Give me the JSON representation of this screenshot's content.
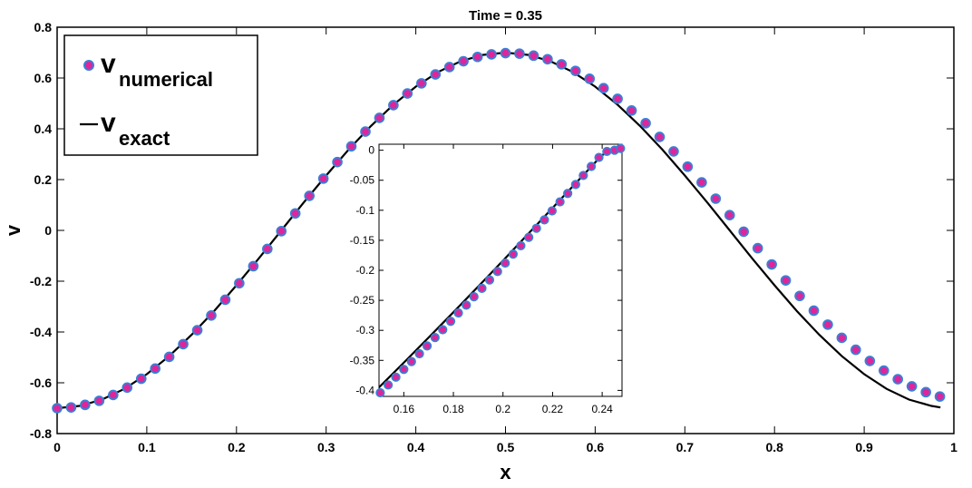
{
  "chart_data": [
    {
      "type": "line",
      "title": "Time = 0.35",
      "xlabel": "x",
      "ylabel": "v",
      "xlim": [
        0,
        1
      ],
      "ylim": [
        -0.8,
        0.8
      ],
      "xticks": [
        "0",
        "0.1",
        "0.2",
        "0.3",
        "0.4",
        "0.5",
        "0.6",
        "0.7",
        "0.8",
        "0.9",
        "1"
      ],
      "yticks": [
        "-0.8",
        "-0.6",
        "-0.4",
        "-0.2",
        "0",
        "0.2",
        "0.4",
        "0.6",
        "0.8"
      ],
      "grid": false,
      "legend_position": "top-left",
      "legend": [
        {
          "symbol": "marker",
          "main": "v",
          "sub": "numerical"
        },
        {
          "symbol": "line",
          "main": "v",
          "sub": "exact"
        }
      ],
      "series": [
        {
          "name": "v numerical",
          "style": "markers",
          "marker_fill": "#e0249a",
          "marker_edge": "#3a7fd5",
          "x": [
            0,
            0.0156,
            0.0312,
            0.0469,
            0.0625,
            0.0781,
            0.0938,
            0.1094,
            0.125,
            0.1406,
            0.1563,
            0.1719,
            0.1875,
            0.2031,
            0.2188,
            0.2344,
            0.25,
            0.2656,
            0.2813,
            0.2969,
            0.3125,
            0.3281,
            0.3438,
            0.3594,
            0.375,
            0.3906,
            0.4063,
            0.4219,
            0.4375,
            0.4531,
            0.4688,
            0.4844,
            0.5,
            0.5156,
            0.5313,
            0.5469,
            0.5625,
            0.5781,
            0.5938,
            0.6094,
            0.625,
            0.6406,
            0.6563,
            0.6719,
            0.6875,
            0.7031,
            0.7188,
            0.7344,
            0.75,
            0.7656,
            0.7813,
            0.7969,
            0.8125,
            0.8281,
            0.8438,
            0.8594,
            0.875,
            0.8906,
            0.9063,
            0.9219,
            0.9375,
            0.9531,
            0.9688,
            0.9844
          ],
          "y": [
            -0.7,
            -0.697,
            -0.687,
            -0.671,
            -0.648,
            -0.619,
            -0.584,
            -0.544,
            -0.498,
            -0.448,
            -0.393,
            -0.335,
            -0.273,
            -0.208,
            -0.141,
            -0.073,
            -0.003,
            0.067,
            0.136,
            0.204,
            0.269,
            0.331,
            0.389,
            0.443,
            0.493,
            0.539,
            0.579,
            0.614,
            0.643,
            0.666,
            0.683,
            0.693,
            0.698,
            0.696,
            0.688,
            0.674,
            0.654,
            0.628,
            0.597,
            0.56,
            0.518,
            0.472,
            0.422,
            0.368,
            0.311,
            0.251,
            0.189,
            0.125,
            0.06,
            -0.005,
            -0.07,
            -0.134,
            -0.197,
            -0.258,
            -0.316,
            -0.371,
            -0.423,
            -0.47,
            -0.514,
            -0.552,
            -0.586,
            -0.614,
            -0.637,
            -0.654
          ]
        },
        {
          "name": "v exact",
          "style": "line",
          "color": "#000000",
          "x": [
            0,
            0.025,
            0.05,
            0.075,
            0.1,
            0.125,
            0.15,
            0.175,
            0.2,
            0.225,
            0.25,
            0.275,
            0.3,
            0.325,
            0.35,
            0.375,
            0.4,
            0.425,
            0.45,
            0.475,
            0.5,
            0.525,
            0.55,
            0.575,
            0.6,
            0.625,
            0.65,
            0.675,
            0.7,
            0.725,
            0.75,
            0.775,
            0.8,
            0.825,
            0.85,
            0.875,
            0.9,
            0.925,
            0.95,
            0.975,
            0.985
          ],
          "y": [
            -0.7,
            -0.691,
            -0.666,
            -0.624,
            -0.566,
            -0.495,
            -0.411,
            -0.318,
            -0.216,
            -0.11,
            0,
            0.11,
            0.216,
            0.318,
            0.411,
            0.495,
            0.566,
            0.624,
            0.666,
            0.691,
            0.7,
            0.691,
            0.666,
            0.624,
            0.566,
            0.495,
            0.411,
            0.318,
            0.216,
            0.11,
            0,
            -0.11,
            -0.216,
            -0.318,
            -0.411,
            -0.495,
            -0.566,
            -0.624,
            -0.666,
            -0.691,
            -0.697
          ]
        }
      ]
    },
    {
      "type": "line",
      "title": "",
      "xlim": [
        0.15,
        0.248
      ],
      "ylim": [
        -0.41,
        0.01
      ],
      "xticks": [
        "0.16",
        "0.18",
        "0.2",
        "0.22",
        "0.24"
      ],
      "yticks": [
        "0",
        "-0.05",
        "-0.1",
        "-0.15",
        "-0.2",
        "-0.25",
        "-0.3",
        "-0.35",
        "-0.4"
      ],
      "series": [
        {
          "name": "v numerical",
          "style": "markers",
          "marker_fill": "#e0249a",
          "marker_edge": "#3a7fd5",
          "x": [
            0.1505,
            0.1537,
            0.1568,
            0.16,
            0.1631,
            0.1663,
            0.1694,
            0.1726,
            0.1757,
            0.1789,
            0.182,
            0.1852,
            0.1883,
            0.1915,
            0.1946,
            0.1978,
            0.2009,
            0.2041,
            0.2072,
            0.2104,
            0.2135,
            0.2167,
            0.2198,
            0.223,
            0.2261,
            0.2293,
            0.2324,
            0.2356,
            0.2387,
            0.2419,
            0.245,
            0.2474
          ],
          "y": [
            -0.404,
            -0.391,
            -0.378,
            -0.365,
            -0.352,
            -0.339,
            -0.326,
            -0.312,
            -0.299,
            -0.285,
            -0.271,
            -0.258,
            -0.244,
            -0.23,
            -0.216,
            -0.202,
            -0.188,
            -0.173,
            -0.159,
            -0.145,
            -0.13,
            -0.116,
            -0.101,
            -0.086,
            -0.072,
            -0.057,
            -0.042,
            -0.027,
            -0.012,
            -0.002,
            0.0,
            0.003
          ]
        },
        {
          "name": "v exact",
          "style": "line",
          "color": "#000000",
          "x": [
            0.15,
            0.16,
            0.17,
            0.18,
            0.19,
            0.2,
            0.21,
            0.22,
            0.23,
            0.24,
            0.2475
          ],
          "y": [
            -0.395,
            -0.354,
            -0.312,
            -0.27,
            -0.227,
            -0.184,
            -0.14,
            -0.096,
            -0.052,
            -0.008,
            0.005
          ]
        }
      ]
    }
  ]
}
